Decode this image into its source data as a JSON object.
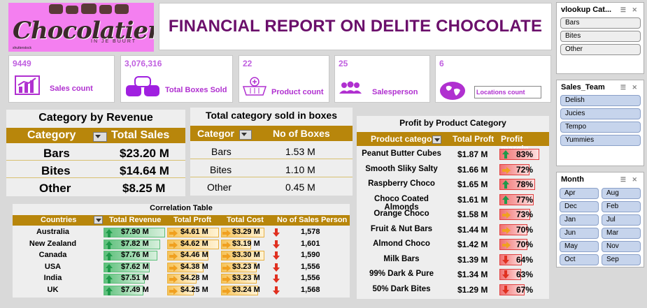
{
  "title": "FINANCIAL REPORT ON DELITE CHOCOLATE",
  "logo": {
    "word": "Chocolatier",
    "sub": "IN JE BUURT",
    "credit": "shutterstock"
  },
  "kpis": [
    {
      "value": "9449",
      "label": "Sales count",
      "icon": "bar-chart-icon"
    },
    {
      "value": "3,076,316",
      "label": "Total Boxes Sold",
      "icon": "boxes-icon"
    },
    {
      "value": "22",
      "label": "Product count",
      "icon": "basket-icon"
    },
    {
      "value": "25",
      "label": "Salesperson",
      "icon": "people-icon"
    },
    {
      "value": "6",
      "label": "Locations count",
      "icon": "globe-icon"
    }
  ],
  "slicers": {
    "category": {
      "title": "vlookup Cat...",
      "items": [
        "Bars",
        "Bites",
        "Other"
      ]
    },
    "sales_team": {
      "title": "Sales_Team",
      "items": [
        "Delish",
        "Jucies",
        "Tempo",
        "Yummies"
      ]
    },
    "month": {
      "title": "Month",
      "items": [
        "Apr",
        "Aug",
        "Dec",
        "Feb",
        "Jan",
        "Jul",
        "Jun",
        "Mar",
        "May",
        "Nov",
        "Oct",
        "Sep"
      ]
    }
  },
  "cat_revenue": {
    "title": "Category by Revenue",
    "headers": [
      "Category",
      "Total Sales"
    ],
    "rows": [
      {
        "category": "Bars",
        "sales": "$23.20 M"
      },
      {
        "category": "Bites",
        "sales": "$14.64 M"
      },
      {
        "category": "Other",
        "sales": "$8.25 M"
      }
    ]
  },
  "cat_boxes": {
    "title": "Total category sold in boxes",
    "headers": [
      "Categor",
      "No of Boxes"
    ],
    "rows": [
      {
        "category": "Bars",
        "boxes": "1.53 M"
      },
      {
        "category": "Bites",
        "boxes": "1.10 M"
      },
      {
        "category": "Other",
        "boxes": "0.45 M"
      }
    ]
  },
  "correlation": {
    "title": "Correlation Table",
    "headers": [
      "Countries",
      "Total Revenue",
      "Total Proft",
      "Total Cost",
      "No of Sales Person"
    ],
    "rows": [
      {
        "country": "Australia",
        "revenue": "$7.90 M",
        "rev_pct": 1.0,
        "profit": "$4.61 M",
        "profit_pct": 1.0,
        "cost": "$3.29 M",
        "cost_pct": 1.0,
        "persons": "1,578"
      },
      {
        "country": "New Zealand",
        "revenue": "$7.82 M",
        "rev_pct": 0.92,
        "profit": "$4.62 M",
        "profit_pct": 1.0,
        "cost": "$3.19 M",
        "cost_pct": 0.7,
        "persons": "1,601"
      },
      {
        "country": "Canada",
        "revenue": "$7.76 M",
        "rev_pct": 0.87,
        "profit": "$4.46 M",
        "profit_pct": 0.8,
        "cost": "$3.30 M",
        "cost_pct": 1.0,
        "persons": "1,590"
      },
      {
        "country": "USA",
        "revenue": "$7.62 M",
        "rev_pct": 0.75,
        "profit": "$4.38 M",
        "profit_pct": 0.7,
        "cost": "$3.23 M",
        "cost_pct": 0.82,
        "persons": "1,556"
      },
      {
        "country": "India",
        "revenue": "$7.51 M",
        "rev_pct": 0.67,
        "profit": "$4.28 M",
        "profit_pct": 0.57,
        "cost": "$3.23 M",
        "cost_pct": 0.82,
        "persons": "1,556"
      },
      {
        "country": "UK",
        "revenue": "$7.49 M",
        "rev_pct": 0.65,
        "profit": "$4.25 M",
        "profit_pct": 0.52,
        "cost": "$3.24 M",
        "cost_pct": 0.85,
        "persons": "1,568"
      }
    ]
  },
  "profit_by_category": {
    "title": "Profit by Product Category",
    "headers": [
      "Product category",
      "Total Proft",
      "Profit margin"
    ],
    "rows": [
      {
        "product": "Peanut Butter Cubes",
        "profit": "$1.87 M",
        "margin": "83%",
        "margin_value": 83,
        "trend": "up"
      },
      {
        "product": "Smooth Sliky Salty",
        "profit": "$1.66 M",
        "margin": "72%",
        "margin_value": 72,
        "trend": "flat"
      },
      {
        "product": "Raspberry Choco",
        "profit": "$1.65 M",
        "margin": "78%",
        "margin_value": 78,
        "trend": "up"
      },
      {
        "product": "Choco Coated Almonds",
        "profit": "$1.61 M",
        "margin": "77%",
        "margin_value": 77,
        "trend": "up"
      },
      {
        "product": "Orange Choco",
        "profit": "$1.58 M",
        "margin": "73%",
        "margin_value": 73,
        "trend": "flat"
      },
      {
        "product": "Fruit & Nut Bars",
        "profit": "$1.44 M",
        "margin": "70%",
        "margin_value": 70,
        "trend": "flat"
      },
      {
        "product": "Almond Choco",
        "profit": "$1.42 M",
        "margin": "70%",
        "margin_value": 70,
        "trend": "flat"
      },
      {
        "product": "Milk Bars",
        "profit": "$1.39 M",
        "margin": "64%",
        "margin_value": 64,
        "trend": "down"
      },
      {
        "product": "99% Dark & Pure",
        "profit": "$1.34 M",
        "margin": "63%",
        "margin_value": 63,
        "trend": "down"
      },
      {
        "product": "50% Dark Bites",
        "profit": "$1.29 M",
        "margin": "67%",
        "margin_value": 67,
        "trend": "down"
      }
    ]
  },
  "colors": {
    "gold": "#b8860b",
    "title_purple": "#6b0f6b",
    "kpi_purple": "#b030d0",
    "logo_pink": "#f47ff0"
  }
}
